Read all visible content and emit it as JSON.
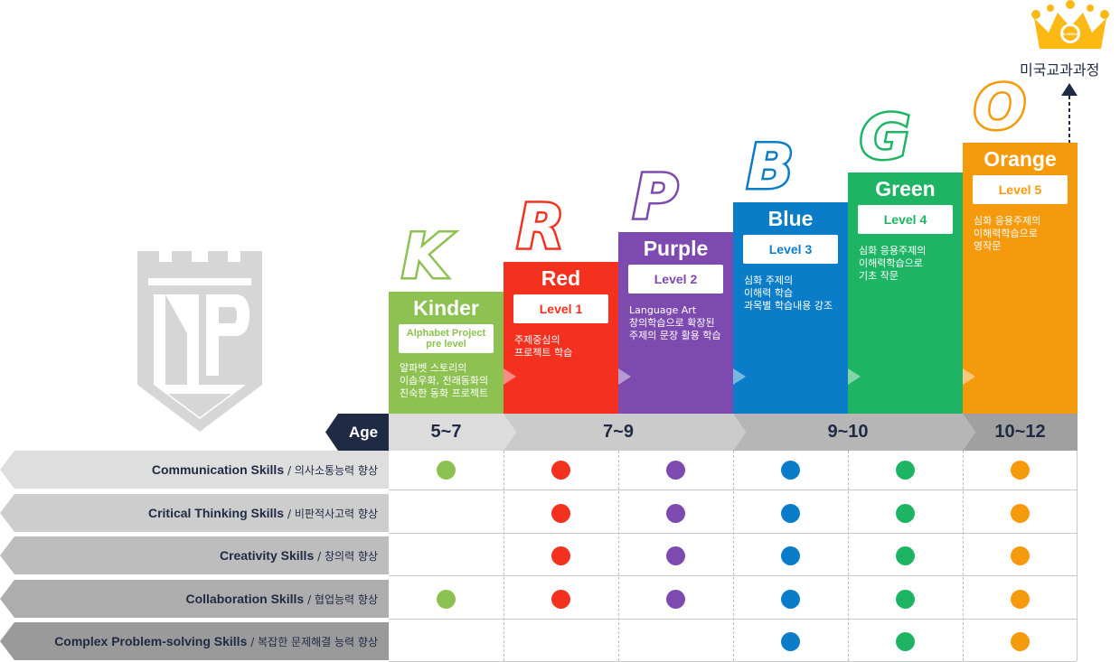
{
  "crown_badge_text": "MR.ENGLISH",
  "top_label": "미국교과과정",
  "levels": [
    {
      "letter": "K",
      "name": "Kinder",
      "level": "Alphabet Project\npre level",
      "desc": "알파벳 스토리의\n이솝우화, 전래동화의\n친숙한 동화 프로젝트",
      "color": "#8dc252"
    },
    {
      "letter": "R",
      "name": "Red",
      "level": "Level 1",
      "desc": "주제중심의\n프로젝트 학습",
      "color": "#f4301f"
    },
    {
      "letter": "P",
      "name": "Purple",
      "level": "Level 2",
      "desc": "Language Art\n창의학습으로 확장된\n주제의 문장 활용 학습",
      "color": "#7d4ab0"
    },
    {
      "letter": "B",
      "name": "Blue",
      "level": "Level 3",
      "desc": "심화 주제의\n이해력 학습\n과목별 학습내용 강조",
      "color": "#0b7dc8"
    },
    {
      "letter": "G",
      "name": "Green",
      "level": "Level 4",
      "desc": "심화 응용주제의\n이해력학습으로\n기초 작문",
      "color": "#1db564"
    },
    {
      "letter": "O",
      "name": "Orange",
      "level": "Level 5",
      "desc": "심화 응용주제의\n이해력학습으로\n영작문",
      "color": "#f59a0c"
    }
  ],
  "age": {
    "label": "Age",
    "ranges": [
      "5~7",
      "7~9",
      "9~10",
      "10~12"
    ]
  },
  "skills": [
    {
      "en": "Communication Skills",
      "ko": "/ 의사소통능력 향상",
      "levels": [
        true,
        true,
        true,
        true,
        true,
        true
      ]
    },
    {
      "en": "Critical Thinking Skills",
      "ko": "/ 비판적사고력 향상",
      "levels": [
        false,
        true,
        true,
        true,
        true,
        true
      ]
    },
    {
      "en": "Creativity Skills",
      "ko": "/ 창의력 향상",
      "levels": [
        false,
        true,
        true,
        true,
        true,
        true
      ]
    },
    {
      "en": "Collaboration Skills",
      "ko": "/ 협업능력 향상",
      "levels": [
        true,
        true,
        true,
        true,
        true,
        true
      ]
    },
    {
      "en": "Complex Problem-solving Skills",
      "ko": "/ 복잡한 문제해결 능력 향상",
      "levels": [
        false,
        false,
        false,
        true,
        true,
        true
      ]
    }
  ],
  "colors": {
    "navy": "#1f2a44",
    "age_light": "#dcdcdc",
    "age_mid": "#cbcbcb",
    "age_dark": "#b4b4b4",
    "age_darkest": "#9e9e9e",
    "crown": "#fdb913"
  }
}
